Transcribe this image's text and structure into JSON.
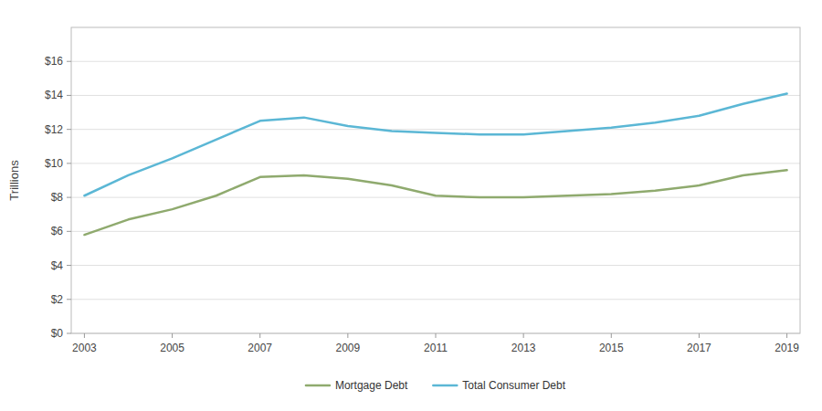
{
  "chart_data": {
    "type": "line",
    "ylabel": "Trillions",
    "x": [
      2003,
      2004,
      2005,
      2006,
      2007,
      2008,
      2009,
      2010,
      2011,
      2012,
      2013,
      2014,
      2015,
      2016,
      2017,
      2018,
      2019
    ],
    "series": [
      {
        "name": "Mortgage Debt",
        "color": "#8faa6e",
        "values": [
          5.8,
          6.7,
          7.3,
          8.1,
          9.2,
          9.3,
          9.1,
          8.7,
          8.1,
          8.0,
          8.0,
          8.1,
          8.2,
          8.4,
          8.7,
          9.3,
          9.6
        ]
      },
      {
        "name": "Total Consumer Debt",
        "color": "#5bb7d5",
        "values": [
          8.1,
          9.3,
          10.3,
          11.4,
          12.5,
          12.7,
          12.2,
          11.9,
          11.8,
          11.7,
          11.7,
          11.9,
          12.1,
          12.4,
          12.8,
          13.5,
          14.1
        ]
      }
    ],
    "xlim": [
      2002.7,
      2019.3
    ],
    "xticks": [
      2003,
      2005,
      2007,
      2009,
      2011,
      2013,
      2015,
      2017,
      2019
    ],
    "ylim": [
      0,
      18
    ],
    "yticks": [
      {
        "value": 0,
        "label": "$0"
      },
      {
        "value": 2,
        "label": "$2"
      },
      {
        "value": 4,
        "label": "$4"
      },
      {
        "value": 6,
        "label": "$6"
      },
      {
        "value": 8,
        "label": "$8"
      },
      {
        "value": 10,
        "label": "$10"
      },
      {
        "value": 12,
        "label": "$12"
      },
      {
        "value": 14,
        "label": "$14"
      },
      {
        "value": 16,
        "label": "$16"
      }
    ],
    "grid": true,
    "legend": "bottom"
  }
}
